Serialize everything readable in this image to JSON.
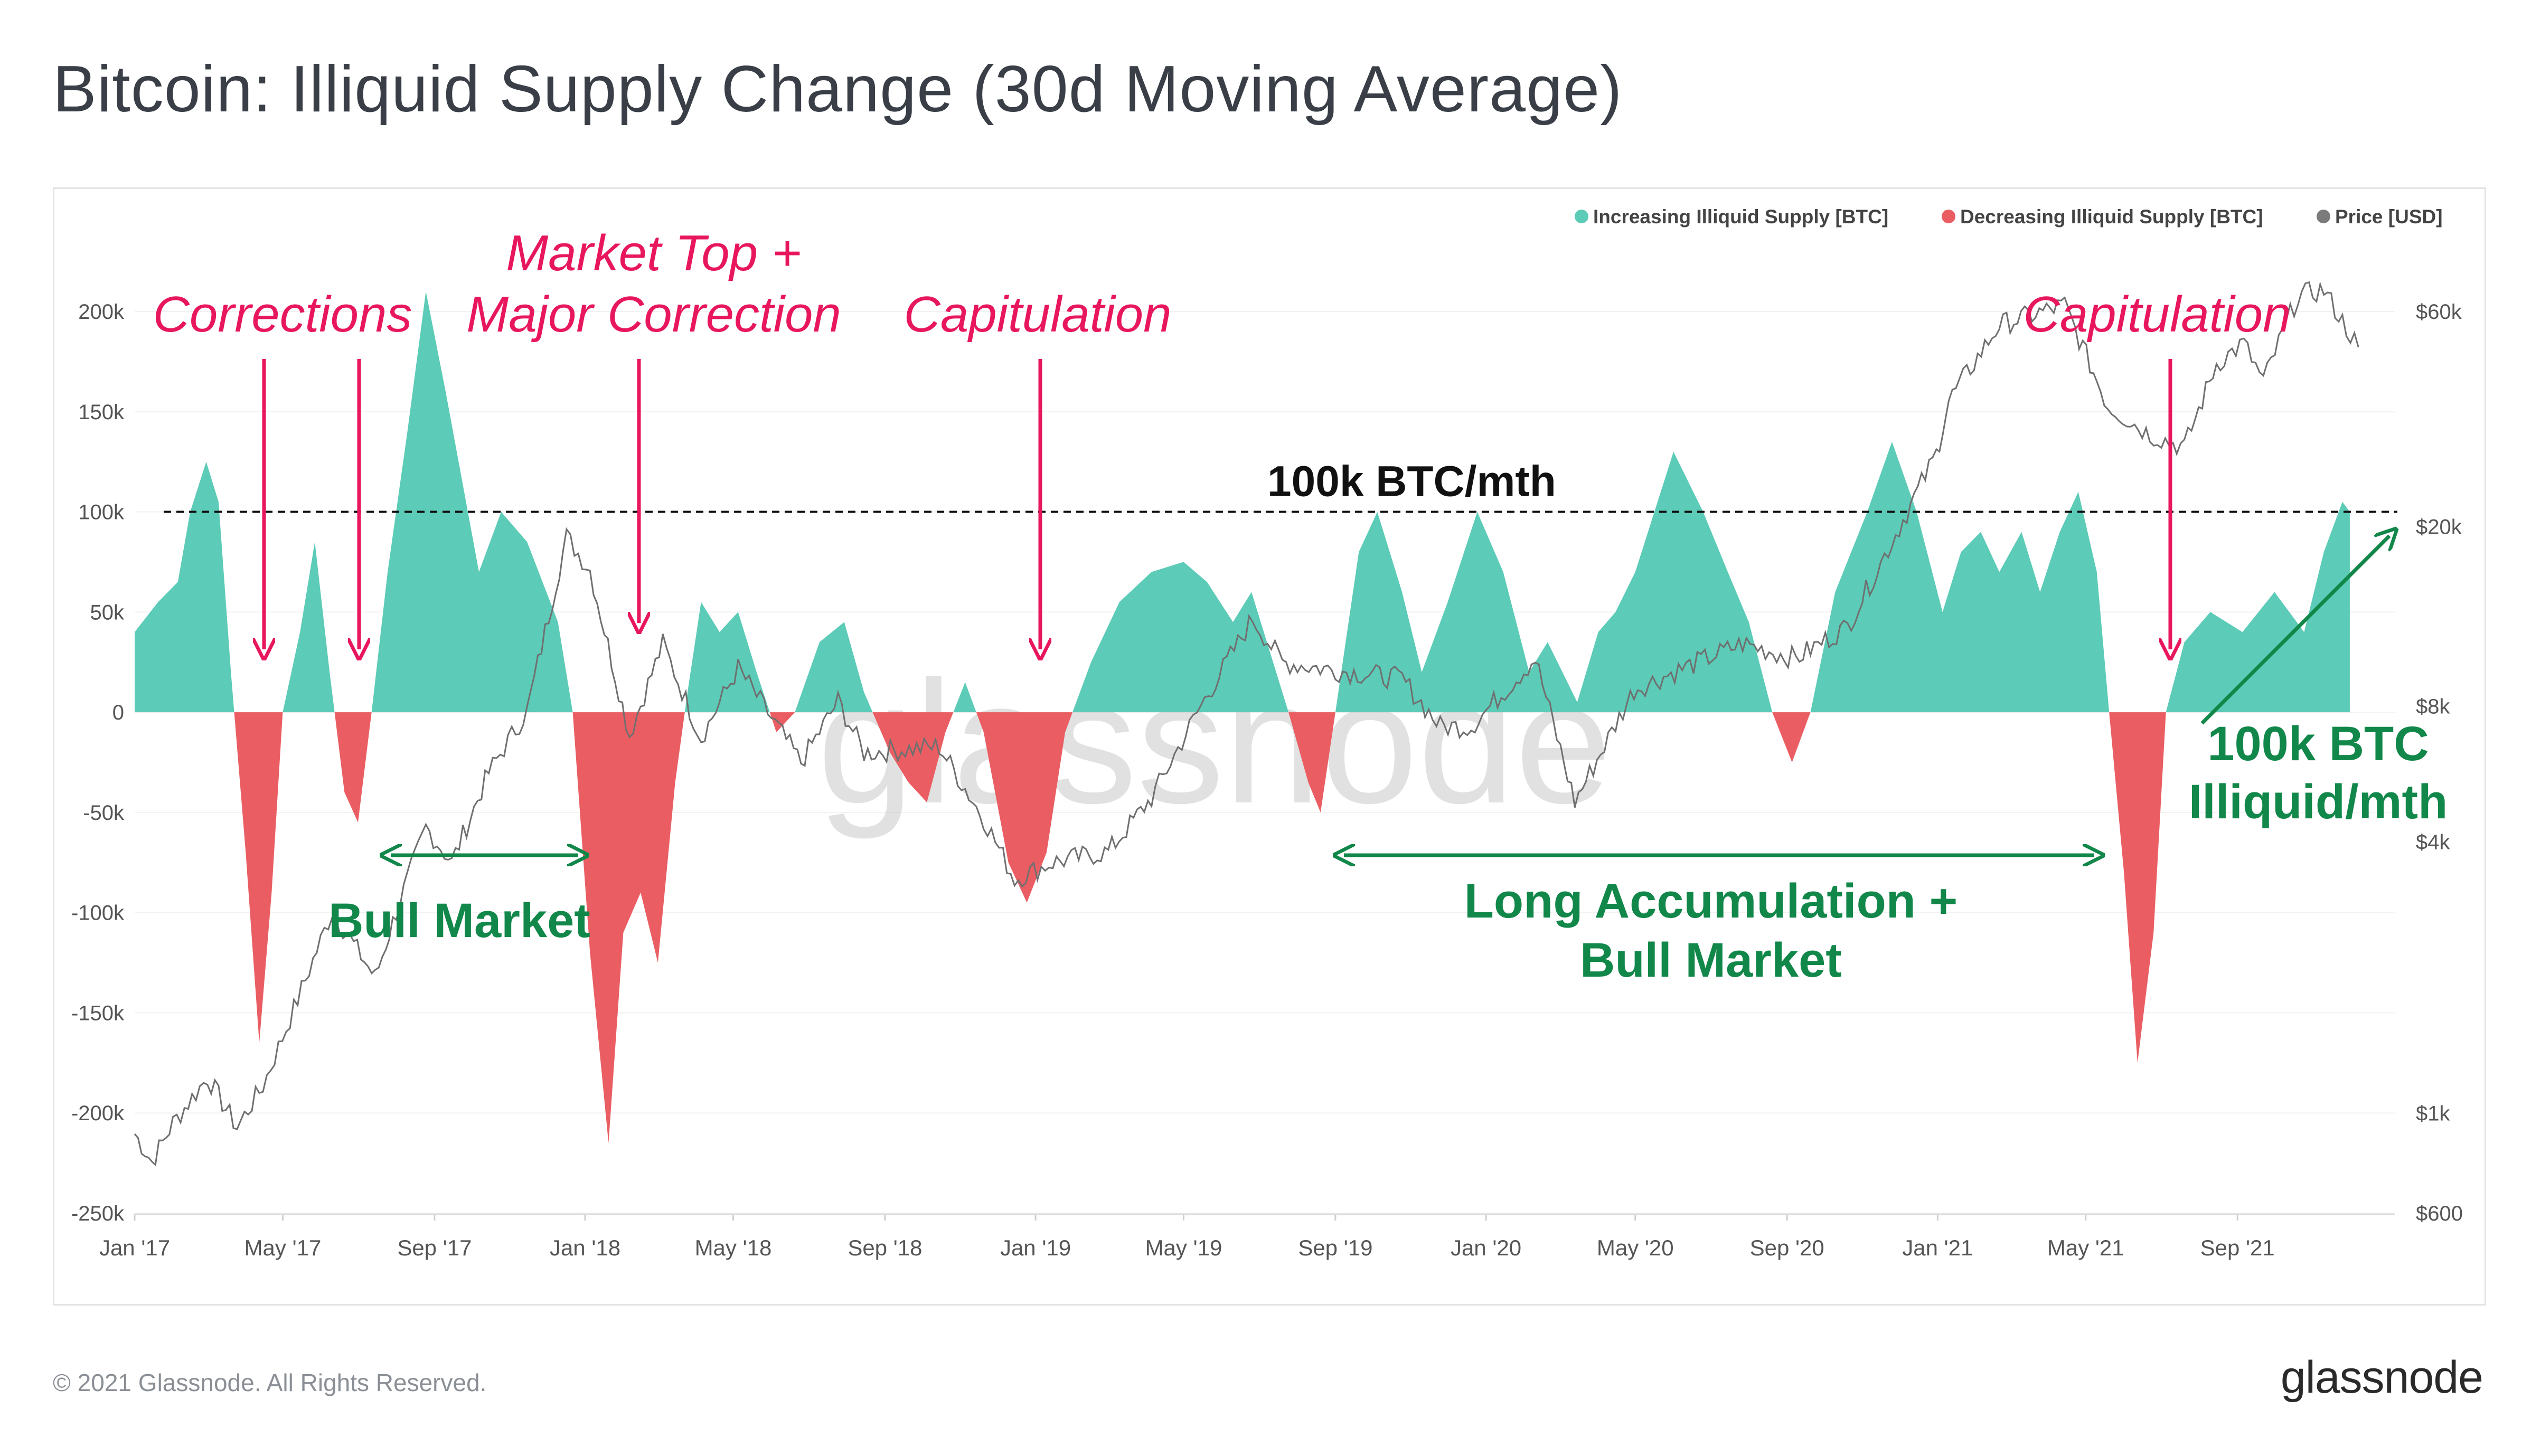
{
  "title": "Bitcoin: Illiquid Supply Change (30d Moving Average)",
  "footer": {
    "copyright": "© 2021 Glassnode. All Rights Reserved.",
    "logo": "glassnode"
  },
  "watermark": "glassnode",
  "chart_data": {
    "type": "area",
    "legend": {
      "placement": "top-right",
      "items": [
        {
          "label": "Increasing Illiquid Supply [BTC]",
          "color": "#5ccbb7"
        },
        {
          "label": "Decreasing Illiquid Supply [BTC]",
          "color": "#ea5e63"
        },
        {
          "label": "Price [USD]",
          "color": "#7b7b7b"
        }
      ]
    },
    "x_ticks": [
      "Jan '17",
      "May '17",
      "Sep '17",
      "Jan '18",
      "May '18",
      "Sep '18",
      "Jan '19",
      "May '19",
      "Sep '19",
      "Jan '20",
      "May '20",
      "Sep '20",
      "Jan '21",
      "May '21",
      "Sep '21"
    ],
    "x_range": [
      "2017-01-01",
      "2021-12-31"
    ],
    "y_left": {
      "min": -250000,
      "max": 200000,
      "ticks": [
        {
          "v": 200000,
          "label": "200k"
        },
        {
          "v": 150000,
          "label": "150k"
        },
        {
          "v": 100000,
          "label": "100k"
        },
        {
          "v": 50000,
          "label": "50k"
        },
        {
          "v": 0,
          "label": "0"
        },
        {
          "v": -50000,
          "label": "-50k"
        },
        {
          "v": -100000,
          "label": "-100k"
        },
        {
          "v": -150000,
          "label": "-150k"
        },
        {
          "v": -200000,
          "label": "-200k"
        },
        {
          "v": -250000,
          "label": "-250k"
        }
      ]
    },
    "y_right": {
      "scale": "log",
      "min": 600,
      "max": 60000,
      "ticks": [
        {
          "v": 60000,
          "label": "$60k"
        },
        {
          "v": 20000,
          "label": "$20k"
        },
        {
          "v": 8000,
          "label": "$8k"
        },
        {
          "v": 4000,
          "label": "$4k"
        },
        {
          "v": 1000,
          "label": "$1k"
        },
        {
          "v": 600,
          "label": "$600"
        }
      ]
    },
    "supply_change_series": [
      [
        "2017-01-01",
        40000
      ],
      [
        "2017-01-20",
        55000
      ],
      [
        "2017-02-05",
        65000
      ],
      [
        "2017-02-15",
        100000
      ],
      [
        "2017-02-28",
        125000
      ],
      [
        "2017-03-10",
        105000
      ],
      [
        "2017-03-20",
        20000
      ],
      [
        "2017-04-01",
        -70000
      ],
      [
        "2017-04-12",
        -165000
      ],
      [
        "2017-04-22",
        -90000
      ],
      [
        "2017-05-01",
        0
      ],
      [
        "2017-05-15",
        40000
      ],
      [
        "2017-05-27",
        85000
      ],
      [
        "2017-06-08",
        20000
      ],
      [
        "2017-06-20",
        -40000
      ],
      [
        "2017-07-01",
        -55000
      ],
      [
        "2017-07-12",
        0
      ],
      [
        "2017-07-25",
        70000
      ],
      [
        "2017-08-10",
        140000
      ],
      [
        "2017-08-25",
        210000
      ],
      [
        "2017-09-10",
        160000
      ],
      [
        "2017-09-25",
        110000
      ],
      [
        "2017-10-07",
        70000
      ],
      [
        "2017-10-25",
        100000
      ],
      [
        "2017-11-15",
        85000
      ],
      [
        "2017-12-10",
        45000
      ],
      [
        "2017-12-22",
        0
      ],
      [
        "2018-01-05",
        -120000
      ],
      [
        "2018-01-20",
        -215000
      ],
      [
        "2018-02-01",
        -110000
      ],
      [
        "2018-02-15",
        -90000
      ],
      [
        "2018-03-01",
        -125000
      ],
      [
        "2018-03-15",
        -35000
      ],
      [
        "2018-03-25",
        10000
      ],
      [
        "2018-04-05",
        55000
      ],
      [
        "2018-04-20",
        40000
      ],
      [
        "2018-05-05",
        50000
      ],
      [
        "2018-05-20",
        20000
      ],
      [
        "2018-06-05",
        -10000
      ],
      [
        "2018-06-20",
        0
      ],
      [
        "2018-07-10",
        35000
      ],
      [
        "2018-07-30",
        45000
      ],
      [
        "2018-08-15",
        10000
      ],
      [
        "2018-09-05",
        -20000
      ],
      [
        "2018-09-20",
        -35000
      ],
      [
        "2018-10-05",
        -45000
      ],
      [
        "2018-10-20",
        -10000
      ],
      [
        "2018-11-05",
        15000
      ],
      [
        "2018-11-20",
        -10000
      ],
      [
        "2018-12-10",
        -75000
      ],
      [
        "2018-12-25",
        -95000
      ],
      [
        "2019-01-10",
        -70000
      ],
      [
        "2019-01-25",
        -10000
      ],
      [
        "2019-02-15",
        25000
      ],
      [
        "2019-03-10",
        55000
      ],
      [
        "2019-04-05",
        70000
      ],
      [
        "2019-05-01",
        75000
      ],
      [
        "2019-05-20",
        65000
      ],
      [
        "2019-06-10",
        45000
      ],
      [
        "2019-06-25",
        60000
      ],
      [
        "2019-07-10",
        30000
      ],
      [
        "2019-07-25",
        0
      ],
      [
        "2019-08-10",
        -35000
      ],
      [
        "2019-08-20",
        -50000
      ],
      [
        "2019-09-01",
        0
      ],
      [
        "2019-09-20",
        80000
      ],
      [
        "2019-10-05",
        100000
      ],
      [
        "2019-10-25",
        60000
      ],
      [
        "2019-11-10",
        20000
      ],
      [
        "2019-12-01",
        55000
      ],
      [
        "2019-12-25",
        100000
      ],
      [
        "2020-01-15",
        70000
      ],
      [
        "2020-02-05",
        20000
      ],
      [
        "2020-02-20",
        35000
      ],
      [
        "2020-03-15",
        5000
      ],
      [
        "2020-04-01",
        40000
      ],
      [
        "2020-04-15",
        50000
      ],
      [
        "2020-05-01",
        70000
      ],
      [
        "2020-06-01",
        130000
      ],
      [
        "2020-06-25",
        100000
      ],
      [
        "2020-07-15",
        70000
      ],
      [
        "2020-08-01",
        45000
      ],
      [
        "2020-08-20",
        0
      ],
      [
        "2020-09-05",
        -25000
      ],
      [
        "2020-09-20",
        0
      ],
      [
        "2020-10-10",
        60000
      ],
      [
        "2020-11-05",
        100000
      ],
      [
        "2020-11-25",
        135000
      ],
      [
        "2020-12-15",
        100000
      ],
      [
        "2021-01-05",
        50000
      ],
      [
        "2021-01-20",
        80000
      ],
      [
        "2021-02-05",
        90000
      ],
      [
        "2021-02-20",
        70000
      ],
      [
        "2021-03-10",
        90000
      ],
      [
        "2021-03-25",
        60000
      ],
      [
        "2021-04-10",
        90000
      ],
      [
        "2021-04-25",
        110000
      ],
      [
        "2021-05-10",
        70000
      ],
      [
        "2021-05-20",
        0
      ],
      [
        "2021-06-01",
        -80000
      ],
      [
        "2021-06-12",
        -175000
      ],
      [
        "2021-06-25",
        -110000
      ],
      [
        "2021-07-05",
        0
      ],
      [
        "2021-07-20",
        35000
      ],
      [
        "2021-08-10",
        50000
      ],
      [
        "2021-09-05",
        40000
      ],
      [
        "2021-10-01",
        60000
      ],
      [
        "2021-10-25",
        40000
      ],
      [
        "2021-11-10",
        80000
      ],
      [
        "2021-11-25",
        105000
      ],
      [
        "2021-12-01",
        100000
      ]
    ],
    "price_series": [
      [
        "2017-01-01",
        900
      ],
      [
        "2017-01-15",
        780
      ],
      [
        "2017-02-01",
        950
      ],
      [
        "2017-03-01",
        1200
      ],
      [
        "2017-03-25",
        930
      ],
      [
        "2017-04-15",
        1150
      ],
      [
        "2017-05-10",
        1700
      ],
      [
        "2017-06-10",
        2800
      ],
      [
        "2017-07-15",
        2000
      ],
      [
        "2017-08-01",
        2800
      ],
      [
        "2017-08-25",
        4300
      ],
      [
        "2017-09-15",
        3600
      ],
      [
        "2017-10-15",
        5700
      ],
      [
        "2017-11-15",
        7800
      ],
      [
        "2017-12-17",
        19000
      ],
      [
        "2018-01-05",
        16000
      ],
      [
        "2018-02-06",
        6900
      ],
      [
        "2018-03-05",
        11000
      ],
      [
        "2018-04-05",
        6800
      ],
      [
        "2018-05-05",
        9700
      ],
      [
        "2018-06-25",
        6000
      ],
      [
        "2018-07-25",
        8200
      ],
      [
        "2018-08-15",
        6300
      ],
      [
        "2018-10-15",
        6500
      ],
      [
        "2018-11-20",
        4500
      ],
      [
        "2018-12-15",
        3300
      ],
      [
        "2019-01-15",
        3600
      ],
      [
        "2019-03-01",
        3800
      ],
      [
        "2019-04-05",
        5000
      ],
      [
        "2019-05-15",
        8000
      ],
      [
        "2019-06-26",
        12500
      ],
      [
        "2019-07-20",
        10000
      ],
      [
        "2019-09-01",
        9600
      ],
      [
        "2019-10-25",
        9200
      ],
      [
        "2019-11-25",
        7200
      ],
      [
        "2019-12-20",
        7200
      ],
      [
        "2020-02-10",
        10200
      ],
      [
        "2020-03-13",
        4900
      ],
      [
        "2020-04-30",
        8700
      ],
      [
        "2020-06-05",
        9600
      ],
      [
        "2020-07-27",
        11000
      ],
      [
        "2020-09-08",
        10200
      ],
      [
        "2020-10-20",
        12000
      ],
      [
        "2020-11-25",
        18500
      ],
      [
        "2020-12-31",
        29000
      ],
      [
        "2021-01-10",
        38000
      ],
      [
        "2021-02-20",
        56000
      ],
      [
        "2021-04-14",
        62000
      ],
      [
        "2021-05-19",
        37000
      ],
      [
        "2021-06-22",
        32000
      ],
      [
        "2021-07-20",
        30000
      ],
      [
        "2021-08-15",
        46000
      ],
      [
        "2021-09-06",
        51000
      ],
      [
        "2021-09-22",
        42000
      ],
      [
        "2021-10-20",
        65000
      ],
      [
        "2021-11-10",
        67000
      ],
      [
        "2021-11-25",
        57000
      ],
      [
        "2021-12-08",
        50000
      ]
    ],
    "reference_line": {
      "value": 100000,
      "label": "100k BTC/mth"
    },
    "annotations": [
      {
        "text": "Corrections",
        "color": "#e8175d"
      },
      {
        "text": "Market Top +",
        "color": "#e8175d"
      },
      {
        "text": "Major Correction",
        "color": "#e8175d"
      },
      {
        "text": "Capitulation",
        "color": "#e8175d"
      },
      {
        "text": "Capitulation",
        "color": "#e8175d"
      },
      {
        "text": "Bull Market",
        "color": "#11874a"
      },
      {
        "text": "Long Accumulation +",
        "color": "#11874a"
      },
      {
        "text": "Bull Market",
        "color": "#11874a"
      },
      {
        "text": "100k BTC",
        "color": "#11874a"
      },
      {
        "text": "Illiquid/mth",
        "color": "#11874a"
      }
    ]
  }
}
